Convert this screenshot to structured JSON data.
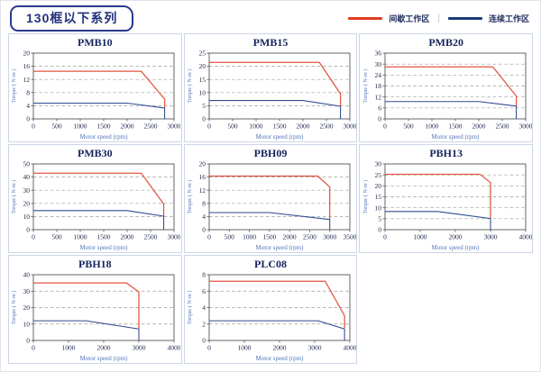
{
  "page": {
    "header_title": "130框以下系列",
    "legend": {
      "intermittent_label": "间歇工作区",
      "continuous_label": "连续工作区",
      "separator": "|",
      "intermittent_color": "#e23c20",
      "continuous_color": "#1c3b78"
    }
  },
  "chart_style": {
    "line_red": "#e05540",
    "line_blue": "#2c4b8f",
    "grid_color": "#9c9c9c",
    "axis_color": "#555555",
    "tick_text_color": "#222a4e",
    "axis_label_color": "#4e74b8",
    "title_color": "#14245c",
    "grid": "horizontal-dashed",
    "legend_position": "top-right"
  },
  "chart_data": [
    {
      "type": "line",
      "title": "PMB10",
      "xlabel": "Motor speed (rpm)",
      "ylabel": "Torque ( N·m )",
      "xlim": [
        0,
        3000
      ],
      "xticks": [
        0,
        500,
        1000,
        1500,
        2000,
        2500,
        3000
      ],
      "ylim": [
        0,
        20
      ],
      "yticks": [
        0,
        4,
        8,
        12,
        16,
        20
      ],
      "series": [
        {
          "name": "间歇工作区",
          "color": "red",
          "points": [
            [
              0,
              14.5
            ],
            [
              2300,
              14.5
            ],
            [
              2800,
              6
            ],
            [
              2800,
              3.4
            ]
          ]
        },
        {
          "name": "连续工作区",
          "color": "blue",
          "points": [
            [
              0,
              4.8
            ],
            [
              2000,
              4.8
            ],
            [
              2800,
              3.3
            ],
            [
              2800,
              0
            ]
          ]
        }
      ]
    },
    {
      "type": "line",
      "title": "PMB15",
      "xlabel": "Motor speed (rpm)",
      "ylabel": "Torque ( N·m )",
      "xlim": [
        0,
        3000
      ],
      "xticks": [
        0,
        500,
        1000,
        1500,
        2000,
        2500,
        3000
      ],
      "ylim": [
        0,
        25
      ],
      "yticks": [
        0,
        5,
        10,
        15,
        20,
        25
      ],
      "series": [
        {
          "name": "间歇工作区",
          "color": "red",
          "points": [
            [
              0,
              21.5
            ],
            [
              2350,
              21.5
            ],
            [
              2800,
              9.5
            ],
            [
              2800,
              4.9
            ]
          ]
        },
        {
          "name": "连续工作区",
          "color": "blue",
          "points": [
            [
              0,
              7
            ],
            [
              2000,
              7
            ],
            [
              2800,
              4.8
            ],
            [
              2800,
              0
            ]
          ]
        }
      ]
    },
    {
      "type": "line",
      "title": "PMB20",
      "xlabel": "Motor speed (rpm)",
      "ylabel": "Torque ( N·m )",
      "xlim": [
        0,
        3000
      ],
      "xticks": [
        0,
        500,
        1000,
        1500,
        2000,
        2500,
        3000
      ],
      "ylim": [
        0,
        36
      ],
      "yticks": [
        0,
        6,
        12,
        18,
        24,
        30,
        36
      ],
      "series": [
        {
          "name": "间歇工作区",
          "color": "red",
          "points": [
            [
              0,
              28.5
            ],
            [
              2300,
              28.5
            ],
            [
              2800,
              12.5
            ],
            [
              2800,
              7
            ]
          ]
        },
        {
          "name": "连续工作区",
          "color": "blue",
          "points": [
            [
              0,
              9.5
            ],
            [
              2000,
              9.5
            ],
            [
              2800,
              7
            ],
            [
              2800,
              0
            ]
          ]
        }
      ]
    },
    {
      "type": "line",
      "title": "PMB30",
      "xlabel": "Motor speed (rpm)",
      "ylabel": "Torque ( N·m )",
      "xlim": [
        0,
        3000
      ],
      "xticks": [
        0,
        500,
        1000,
        1500,
        2000,
        2500,
        3000
      ],
      "ylim": [
        0,
        50
      ],
      "yticks": [
        0,
        10,
        20,
        30,
        40,
        50
      ],
      "series": [
        {
          "name": "间歇工作区",
          "color": "red",
          "points": [
            [
              0,
              43
            ],
            [
              2300,
              43
            ],
            [
              2780,
              19.5
            ],
            [
              2780,
              10.4
            ]
          ]
        },
        {
          "name": "连续工作区",
          "color": "blue",
          "points": [
            [
              0,
              14.5
            ],
            [
              2000,
              14.5
            ],
            [
              2780,
              10.3
            ],
            [
              2780,
              0
            ]
          ]
        }
      ]
    },
    {
      "type": "line",
      "title": "PBH09",
      "xlabel": "Motor speed (rpm)",
      "ylabel": "Torque ( N·m )",
      "xlim": [
        0,
        3500
      ],
      "xticks": [
        0,
        500,
        1000,
        1500,
        2000,
        2500,
        3000,
        3500
      ],
      "ylim": [
        0,
        20
      ],
      "yticks": [
        0,
        4,
        8,
        12,
        16,
        20
      ],
      "series": [
        {
          "name": "间歇工作区",
          "color": "red",
          "points": [
            [
              0,
              16.3
            ],
            [
              2700,
              16.3
            ],
            [
              3000,
              13
            ],
            [
              3000,
              3.2
            ]
          ]
        },
        {
          "name": "连续工作区",
          "color": "blue",
          "points": [
            [
              0,
              5.2
            ],
            [
              1500,
              5.2
            ],
            [
              3000,
              3.1
            ],
            [
              3000,
              0
            ]
          ]
        }
      ]
    },
    {
      "type": "line",
      "title": "PBH13",
      "xlabel": "Motor speed (rpm)",
      "ylabel": "Torque ( N·m )",
      "xlim": [
        0,
        4000
      ],
      "xticks": [
        0,
        1000,
        2000,
        3000,
        4000
      ],
      "ylim": [
        0,
        30
      ],
      "yticks": [
        0,
        5,
        10,
        15,
        20,
        25,
        30
      ],
      "series": [
        {
          "name": "间歇工作区",
          "color": "red",
          "points": [
            [
              0,
              25.3
            ],
            [
              2700,
              25.3
            ],
            [
              3000,
              21.5
            ],
            [
              3000,
              5.2
            ]
          ]
        },
        {
          "name": "连续工作区",
          "color": "blue",
          "points": [
            [
              0,
              8.3
            ],
            [
              1500,
              8.3
            ],
            [
              3000,
              5.1
            ],
            [
              3000,
              0
            ]
          ]
        }
      ]
    },
    {
      "type": "line",
      "title": "PBH18",
      "xlabel": "Motor speed (rpm)",
      "ylabel": "Torque ( N·m )",
      "xlim": [
        0,
        4000
      ],
      "xticks": [
        0,
        1000,
        2000,
        3000,
        4000
      ],
      "ylim": [
        0,
        40
      ],
      "yticks": [
        0,
        10,
        20,
        30,
        40
      ],
      "series": [
        {
          "name": "间歇工作区",
          "color": "red",
          "points": [
            [
              0,
              35
            ],
            [
              2650,
              35
            ],
            [
              3000,
              29.5
            ],
            [
              3000,
              7.2
            ]
          ]
        },
        {
          "name": "连续工作区",
          "color": "blue",
          "points": [
            [
              0,
              12
            ],
            [
              1500,
              12
            ],
            [
              3000,
              7
            ],
            [
              3000,
              0
            ]
          ]
        }
      ]
    },
    {
      "type": "line",
      "title": "PLC08",
      "xlabel": "Motor speed (rpm)",
      "ylabel": "Torque ( N·m )",
      "xlim": [
        0,
        4000
      ],
      "xticks": [
        0,
        1000,
        2000,
        3000,
        4000
      ],
      "ylim": [
        0,
        8
      ],
      "yticks": [
        0,
        2,
        4,
        6,
        8
      ],
      "series": [
        {
          "name": "间歇工作区",
          "color": "red",
          "points": [
            [
              0,
              7.2
            ],
            [
              3300,
              7.2
            ],
            [
              3850,
              3
            ],
            [
              3850,
              1.5
            ]
          ]
        },
        {
          "name": "连续工作区",
          "color": "blue",
          "points": [
            [
              0,
              2.4
            ],
            [
              3100,
              2.4
            ],
            [
              3850,
              1.4
            ],
            [
              3850,
              0
            ]
          ]
        }
      ]
    }
  ]
}
